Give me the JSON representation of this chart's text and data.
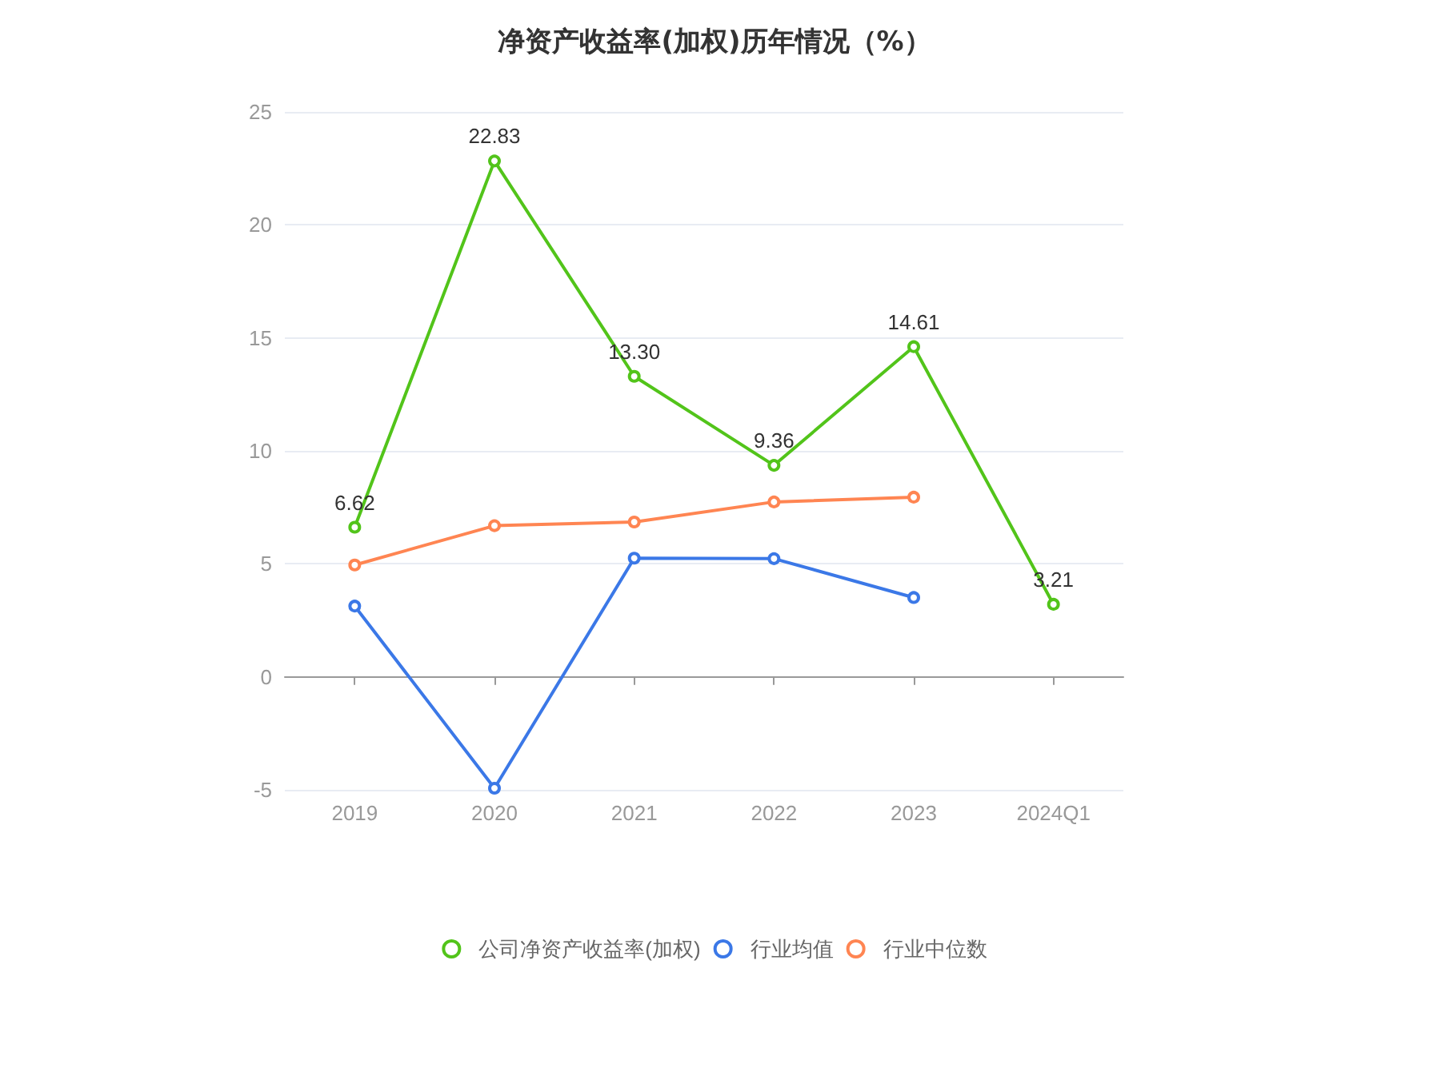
{
  "chart_data": {
    "type": "line",
    "title": "净资产收益率(加权)历年情况（%）",
    "categories": [
      "2019",
      "2020",
      "2021",
      "2022",
      "2023",
      "2024Q1"
    ],
    "series": [
      {
        "name": "公司净资产收益率(加权)",
        "color": "#52c41a",
        "values": [
          6.62,
          22.83,
          13.3,
          9.36,
          14.61,
          3.21
        ],
        "value_labels": [
          "6.62",
          "22.83",
          "13.30",
          "9.36",
          "14.61",
          "3.21"
        ]
      },
      {
        "name": "行业均值",
        "color": "#3b78e7",
        "values": [
          3.13,
          -4.93,
          5.25,
          5.23,
          3.51,
          null
        ]
      },
      {
        "name": "行业中位数",
        "color": "#ff8552",
        "values": [
          4.95,
          6.69,
          6.85,
          7.74,
          7.95,
          null
        ]
      }
    ],
    "ylim": [
      -5,
      25
    ],
    "yticks": [
      -5,
      0,
      5,
      10,
      15,
      20,
      25
    ],
    "grid": "y",
    "legend": "bottom",
    "marker": "circle",
    "line_style": "solid"
  }
}
